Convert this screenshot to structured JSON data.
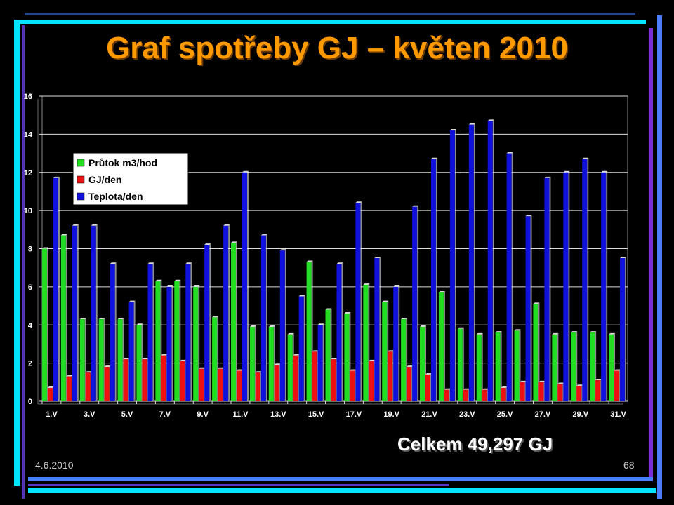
{
  "slide": {
    "title": "Graf spotřeby GJ – květen 2010",
    "total": "Celkem 49,297 GJ",
    "date": "4.6.2010",
    "page": "68"
  },
  "colors": {
    "title": "#ff9900",
    "series_flow": "#22dd22",
    "series_gj": "#ee1111",
    "series_temp": "#1111dd",
    "frame_cyan": "#00e5ff",
    "frame_purple": "#6633cc",
    "frame_blue": "#4466ff"
  },
  "chart_data": {
    "type": "bar",
    "categories": [
      "1.V",
      "2.V",
      "3.V",
      "4.V",
      "5.V",
      "6.V",
      "7.V",
      "8.V",
      "9.V",
      "10.V",
      "11.V",
      "12.V",
      "13.V",
      "14.V",
      "15.V",
      "16.V",
      "17.V",
      "18.V",
      "19.V",
      "20.V",
      "21.V",
      "22.V",
      "23.V",
      "24.V",
      "25.V",
      "26.V",
      "27.V",
      "28.V",
      "29.V",
      "30.V",
      "31.V"
    ],
    "x_tick_labels": [
      "1.V",
      "3.V",
      "5.V",
      "7.V",
      "9.V",
      "11.V",
      "13.V",
      "15.V",
      "17.V",
      "19.V",
      "21.V",
      "23.V",
      "25.V",
      "27.V",
      "29.V",
      "31.V"
    ],
    "series": [
      {
        "name": "Průtok m3/hod",
        "color": "#22dd22",
        "values": [
          8.0,
          8.7,
          4.3,
          4.3,
          4.3,
          4.0,
          6.3,
          6.3,
          6.0,
          4.4,
          8.3,
          3.9,
          3.9,
          3.5,
          7.3,
          4.8,
          4.6,
          6.1,
          5.2,
          4.3,
          3.9,
          5.7,
          3.8,
          3.5,
          3.6,
          3.7,
          5.1,
          3.5,
          3.6,
          3.6,
          3.5
        ]
      },
      {
        "name": "GJ/den",
        "color": "#ee1111",
        "values": [
          0.7,
          1.3,
          1.5,
          1.8,
          2.2,
          2.2,
          2.4,
          2.1,
          1.7,
          1.7,
          1.6,
          1.5,
          1.9,
          2.4,
          2.6,
          2.2,
          1.6,
          2.1,
          2.6,
          1.8,
          1.4,
          0.6,
          0.6,
          0.6,
          0.7,
          1.0,
          1.0,
          0.9,
          0.8,
          1.1,
          1.6
        ]
      },
      {
        "name": "Teplota/den",
        "color": "#1111dd",
        "values": [
          11.7,
          9.2,
          9.2,
          7.2,
          5.2,
          7.2,
          6.0,
          7.2,
          8.2,
          9.2,
          12.0,
          8.7,
          7.9,
          5.5,
          4.0,
          7.2,
          10.4,
          7.5,
          6.0,
          10.2,
          12.7,
          14.2,
          14.5,
          14.7,
          13.0,
          9.7,
          11.7,
          12.0,
          12.7,
          12.0,
          7.5
        ]
      }
    ],
    "xlabel": "",
    "ylabel": "",
    "ylim": [
      0,
      16
    ],
    "yticks": [
      0,
      2,
      4,
      6,
      8,
      10,
      12,
      14,
      16
    ],
    "grid": true,
    "legend_position": "top-left"
  }
}
